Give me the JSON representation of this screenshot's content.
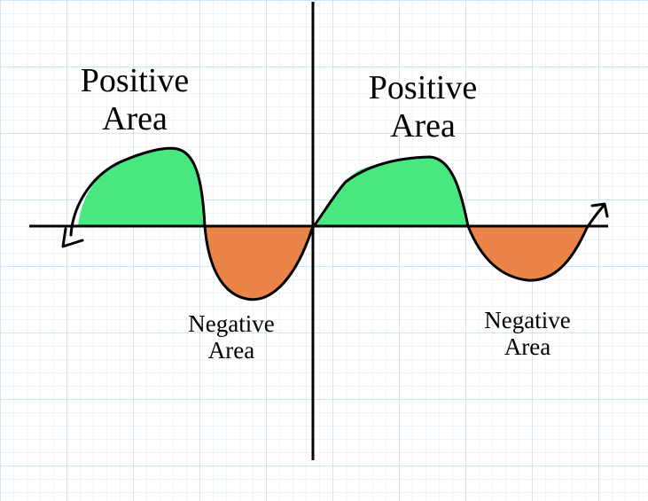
{
  "grid": {
    "minor_color": "#d6ecf8",
    "major_color": "#aed6f1"
  },
  "colors": {
    "positive_fill": "#47e87f",
    "negative_fill": "#eb8448",
    "curve": "#000000",
    "axis": "#000000"
  },
  "labels": {
    "positive_1": [
      "Positive",
      "Area"
    ],
    "positive_2": [
      "Positive",
      "Area"
    ],
    "negative_1": [
      "Negative",
      "Area"
    ],
    "negative_2": [
      "Negative",
      "Area"
    ]
  }
}
